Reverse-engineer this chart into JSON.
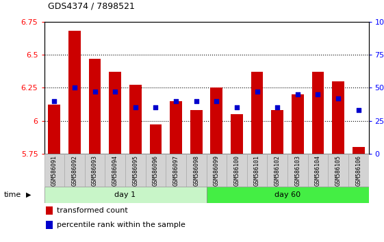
{
  "title": "GDS4374 / 7898521",
  "samples": [
    "GSM586091",
    "GSM586092",
    "GSM586093",
    "GSM586094",
    "GSM586095",
    "GSM586096",
    "GSM586097",
    "GSM586098",
    "GSM586099",
    "GSM586100",
    "GSM586101",
    "GSM586102",
    "GSM586103",
    "GSM586104",
    "GSM586105",
    "GSM586106"
  ],
  "bar_values": [
    6.12,
    6.68,
    6.47,
    6.37,
    6.27,
    5.97,
    6.15,
    6.08,
    6.25,
    6.05,
    6.37,
    6.08,
    6.2,
    6.37,
    6.3,
    5.8
  ],
  "dot_pct": [
    40,
    50,
    47,
    47,
    35,
    35,
    40,
    40,
    40,
    35,
    47,
    35,
    45,
    45,
    42,
    33
  ],
  "ylim_left": [
    5.75,
    6.75
  ],
  "ylim_right": [
    0,
    100
  ],
  "yticks_left": [
    5.75,
    6.0,
    6.25,
    6.5,
    6.75
  ],
  "yticks_right": [
    0,
    25,
    50,
    75,
    100
  ],
  "ytick_labels_left": [
    "5.75",
    "6",
    "6.25",
    "6.5",
    "6.75"
  ],
  "ytick_labels_right": [
    "0",
    "25",
    "50",
    "75",
    "100%"
  ],
  "bar_color": "#cc0000",
  "dot_color": "#0000cc",
  "bg_plot": "#ffffff",
  "day1_color": "#c8f5c8",
  "day60_color": "#44ee44",
  "day1_samples": 8,
  "day60_samples": 8,
  "base_value": 5.75,
  "grid_yticks": [
    6.0,
    6.25,
    6.5
  ]
}
